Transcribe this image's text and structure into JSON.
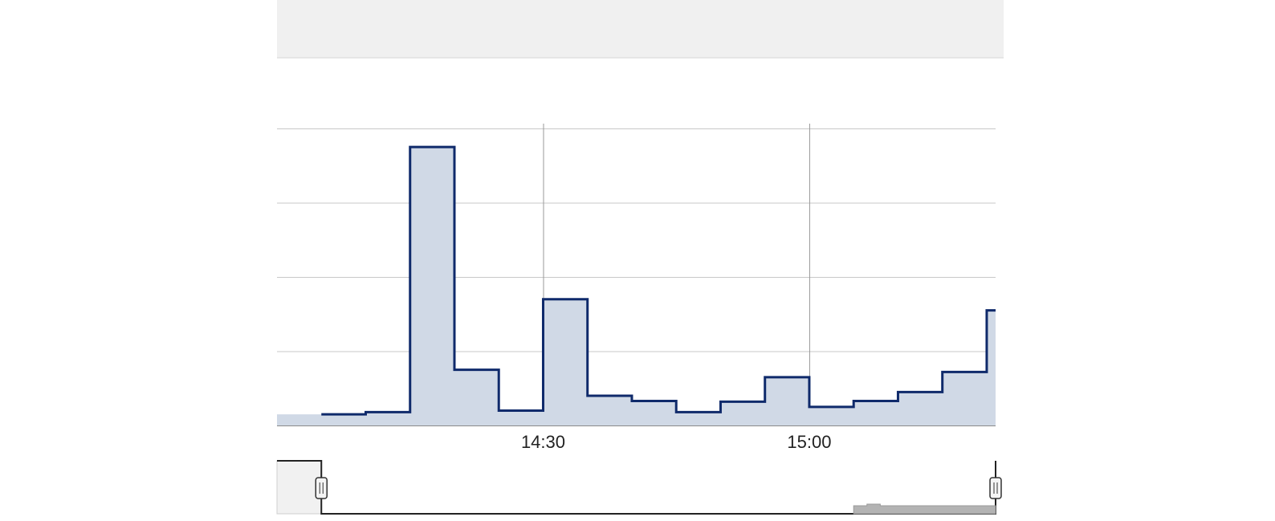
{
  "colors": {
    "line": "#0f2a6b",
    "area_fill": "#d0d9e6",
    "grid": "#c8c8c8",
    "header_bg": "#f0f0f0",
    "navigator_fill": "#b3b3b3"
  },
  "chart_data": {
    "type": "area",
    "step": true,
    "x_unit": "minutes",
    "grid": true,
    "ylim": [
      0,
      4
    ],
    "y_gridlines": [
      1,
      2,
      3,
      4
    ],
    "x_ticks": [
      {
        "value": 30,
        "label": "14:30"
      },
      {
        "value": 60,
        "label": "15:00"
      }
    ],
    "xlim": [
      0,
      81
    ],
    "series": [
      {
        "x": [
          0,
          5,
          10,
          15,
          20,
          25,
          30,
          35,
          40,
          45,
          50,
          55,
          60,
          65,
          70,
          75,
          80
        ],
        "values": [
          0.15,
          0.15,
          0.18,
          3.75,
          0.75,
          0.2,
          1.7,
          0.4,
          0.33,
          0.18,
          0.32,
          0.65,
          0.25,
          0.33,
          0.45,
          0.72,
          1.55
        ]
      }
    ],
    "navigator": {
      "range_start": 5,
      "range_end": 81
    }
  }
}
